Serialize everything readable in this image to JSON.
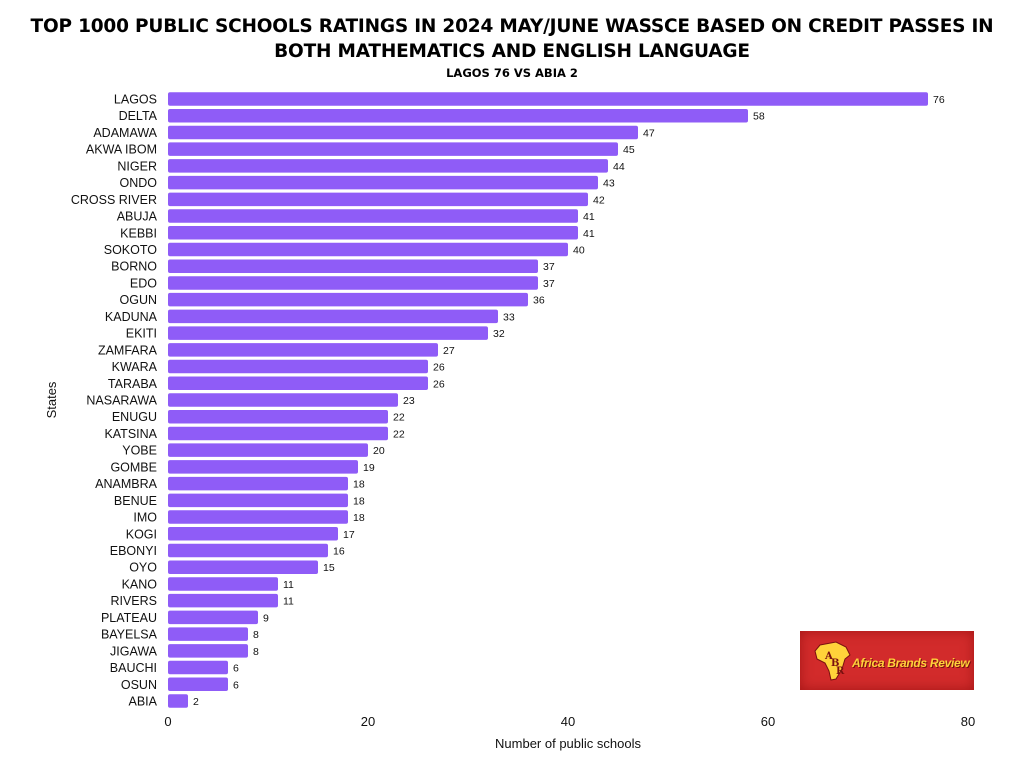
{
  "title": "TOP 1000 PUBLIC SCHOOLS RATINGS IN 2024 MAY/JUNE WASSCE BASED ON CREDIT PASSES IN BOTH MATHEMATICS AND ENGLISH LANGUAGE",
  "subtitle": "LAGOS 76 VS ABIA 2",
  "logo": {
    "name": "Africa Brands Review",
    "initials": "ABR"
  },
  "colors": {
    "bar": "#8f5cf7",
    "text": "#111111",
    "logo_bg": "#d22b2b",
    "logo_text": "#ffd23a"
  },
  "chart_data": {
    "type": "bar",
    "orientation": "horizontal",
    "xlabel": "Number of public schools",
    "ylabel": "States",
    "xlim": [
      0,
      80
    ],
    "xticks": [
      0,
      20,
      40,
      60,
      80
    ],
    "grid": false,
    "data_labels": true,
    "categories": [
      "LAGOS",
      "DELTA",
      "ADAMAWA",
      "AKWA IBOM",
      "NIGER",
      "ONDO",
      "CROSS RIVER",
      "ABUJA",
      "KEBBI",
      "SOKOTO",
      "BORNO",
      "EDO",
      "OGUN",
      "KADUNA",
      "EKITI",
      "ZAMFARA",
      "KWARA",
      "TARABA",
      "NASARAWA",
      "ENUGU",
      "KATSINA",
      "YOBE",
      "GOMBE",
      "ANAMBRA",
      "BENUE",
      "IMO",
      "KOGI",
      "EBONYI",
      "OYO",
      "KANO",
      "RIVERS",
      "PLATEAU",
      "BAYELSA",
      "JIGAWA",
      "BAUCHI",
      "OSUN",
      "ABIA"
    ],
    "values": [
      76,
      58,
      47,
      45,
      44,
      43,
      42,
      41,
      41,
      40,
      37,
      37,
      36,
      33,
      32,
      27,
      26,
      26,
      23,
      22,
      22,
      20,
      19,
      18,
      18,
      18,
      17,
      16,
      15,
      11,
      11,
      9,
      8,
      8,
      6,
      6,
      2
    ]
  }
}
